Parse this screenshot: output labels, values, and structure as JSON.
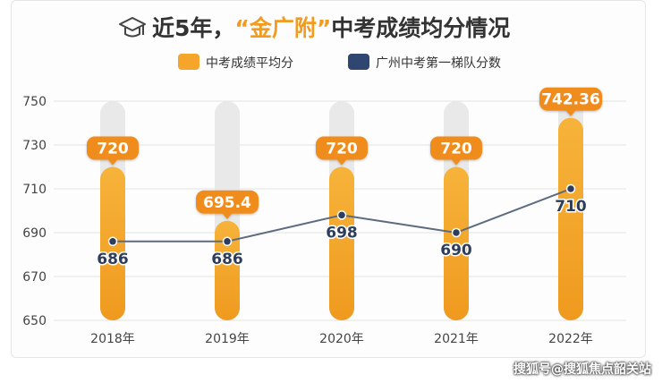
{
  "title": {
    "prefix": "近5年，",
    "highlight": "“金广附”",
    "suffix": "中考成绩均分情况"
  },
  "colors": {
    "bar": "#f5a52a",
    "bar_dark": "#ef9a1f",
    "track": "#e9e9e9",
    "line": "#5c6b80",
    "dot": "#2d3d5c",
    "accent_title": "#f29b20",
    "title_text": "#333333",
    "legend_navy": "#2f4670"
  },
  "watermark": "搜狐号@搜狐焦点韶关站",
  "chart_data": {
    "type": "bar",
    "categories": [
      "2018年",
      "2019年",
      "2020年",
      "2021年",
      "2022年"
    ],
    "series": [
      {
        "name": "中考成绩平均分",
        "type": "bar",
        "values": [
          720,
          695.4,
          720,
          720,
          742.36
        ],
        "labels": [
          "720",
          "695.4",
          "720",
          "720",
          "742.36"
        ]
      },
      {
        "name": "广州中考第一梯队分数",
        "type": "line",
        "values": [
          686,
          686,
          698,
          690,
          710
        ],
        "labels": [
          "686",
          "686",
          "698",
          "690",
          "710"
        ]
      }
    ],
    "ylim": [
      650,
      750
    ],
    "yticks": [
      "650",
      "670",
      "690",
      "710",
      "730",
      "750"
    ],
    "grid": true,
    "legend": "top-center"
  }
}
